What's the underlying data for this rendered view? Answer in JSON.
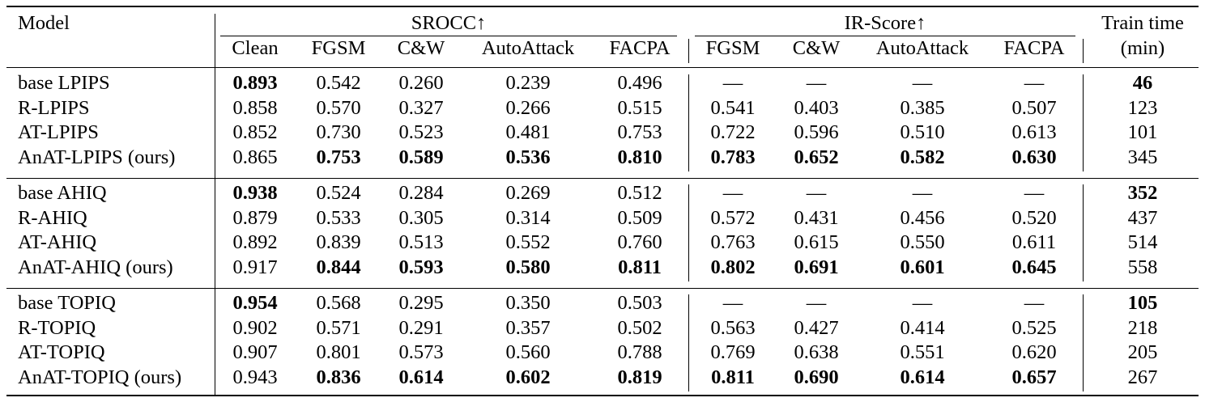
{
  "header": {
    "model": "Model",
    "srocc_group": "SROCC↑",
    "ir_group": "IR-Score↑",
    "train_time": "Train time",
    "train_unit": "(min)",
    "srocc_cols": [
      "Clean",
      "FGSM",
      "C&W",
      "AutoAttack",
      "FACPA"
    ],
    "ir_cols": [
      "FGSM",
      "C&W",
      "AutoAttack",
      "FACPA"
    ]
  },
  "groups": [
    {
      "rows": [
        {
          "model": "base LPIPS",
          "values": [
            "0.893",
            "0.542",
            "0.260",
            "0.239",
            "0.496",
            "—",
            "—",
            "—",
            "—",
            "46"
          ],
          "bold": [
            0,
            9
          ]
        },
        {
          "model": "R-LPIPS",
          "values": [
            "0.858",
            "0.570",
            "0.327",
            "0.266",
            "0.515",
            "0.541",
            "0.403",
            "0.385",
            "0.507",
            "123"
          ],
          "bold": []
        },
        {
          "model": "AT-LPIPS",
          "values": [
            "0.852",
            "0.730",
            "0.523",
            "0.481",
            "0.753",
            "0.722",
            "0.596",
            "0.510",
            "0.613",
            "101"
          ],
          "bold": []
        },
        {
          "model": "AnAT-LPIPS (ours)",
          "values": [
            "0.865",
            "0.753",
            "0.589",
            "0.536",
            "0.810",
            "0.783",
            "0.652",
            "0.582",
            "0.630",
            "345"
          ],
          "bold": [
            1,
            2,
            3,
            4,
            5,
            6,
            7,
            8
          ]
        }
      ]
    },
    {
      "rows": [
        {
          "model": "base AHIQ",
          "values": [
            "0.938",
            "0.524",
            "0.284",
            "0.269",
            "0.512",
            "—",
            "—",
            "—",
            "—",
            "352"
          ],
          "bold": [
            0,
            9
          ]
        },
        {
          "model": "R-AHIQ",
          "values": [
            "0.879",
            "0.533",
            "0.305",
            "0.314",
            "0.509",
            "0.572",
            "0.431",
            "0.456",
            "0.520",
            "437"
          ],
          "bold": []
        },
        {
          "model": "AT-AHIQ",
          "values": [
            "0.892",
            "0.839",
            "0.513",
            "0.552",
            "0.760",
            "0.763",
            "0.615",
            "0.550",
            "0.611",
            "514"
          ],
          "bold": []
        },
        {
          "model": "AnAT-AHIQ (ours)",
          "values": [
            "0.917",
            "0.844",
            "0.593",
            "0.580",
            "0.811",
            "0.802",
            "0.691",
            "0.601",
            "0.645",
            "558"
          ],
          "bold": [
            1,
            2,
            3,
            4,
            5,
            6,
            7,
            8
          ]
        }
      ]
    },
    {
      "rows": [
        {
          "model": "base TOPIQ",
          "values": [
            "0.954",
            "0.568",
            "0.295",
            "0.350",
            "0.503",
            "—",
            "—",
            "—",
            "—",
            "105"
          ],
          "bold": [
            0,
            9
          ]
        },
        {
          "model": "R-TOPIQ",
          "values": [
            "0.902",
            "0.571",
            "0.291",
            "0.357",
            "0.502",
            "0.563",
            "0.427",
            "0.414",
            "0.525",
            "218"
          ],
          "bold": []
        },
        {
          "model": "AT-TOPIQ",
          "values": [
            "0.907",
            "0.801",
            "0.573",
            "0.560",
            "0.788",
            "0.769",
            "0.638",
            "0.551",
            "0.620",
            "205"
          ],
          "bold": []
        },
        {
          "model": "AnAT-TOPIQ (ours)",
          "values": [
            "0.943",
            "0.836",
            "0.614",
            "0.602",
            "0.819",
            "0.811",
            "0.690",
            "0.614",
            "0.657",
            "267"
          ],
          "bold": [
            1,
            2,
            3,
            4,
            5,
            6,
            7,
            8
          ]
        }
      ]
    }
  ]
}
